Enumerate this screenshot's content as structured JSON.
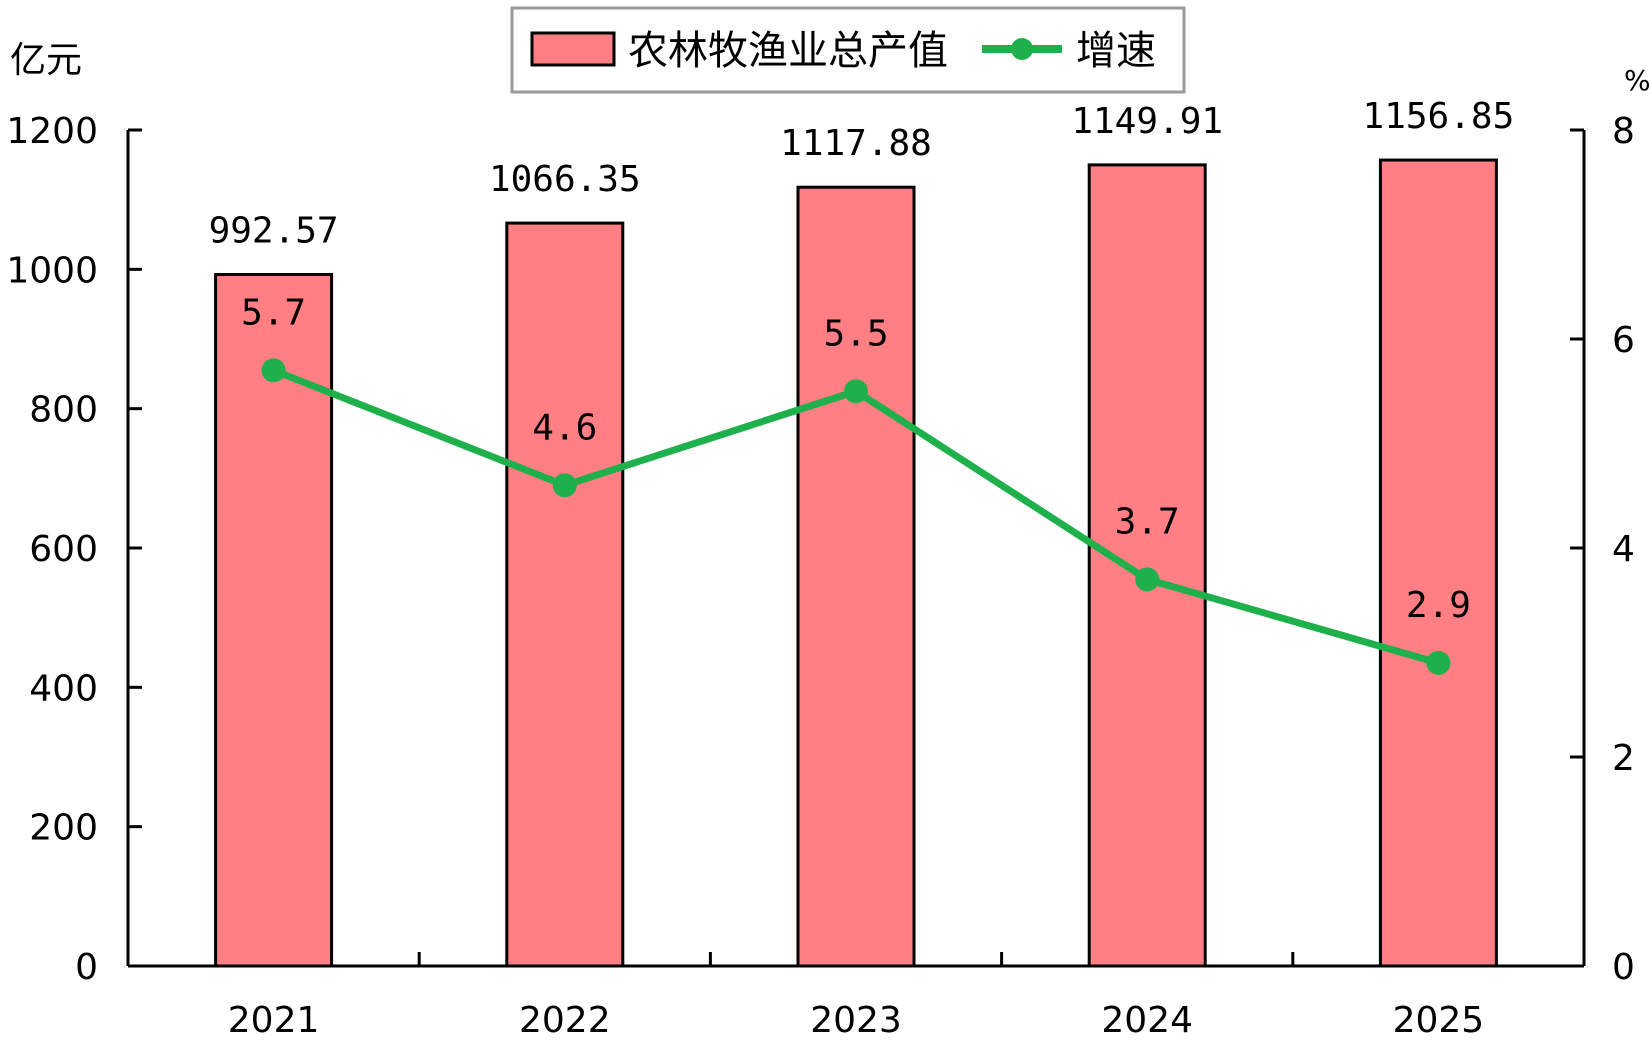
{
  "colors": {
    "bar_fill": "#ff7f84",
    "bar_stroke": "#000000",
    "line": "#1db04b",
    "axis": "#000000"
  },
  "chart_data": {
    "type": "bar",
    "categories": [
      "2021",
      "2022",
      "2023",
      "2024",
      "2025"
    ],
    "series": [
      {
        "name": "农林牧渔业总产值",
        "type": "bar",
        "axis": "left",
        "values": [
          992.57,
          1066.35,
          1117.88,
          1149.91,
          1156.85
        ],
        "labels": [
          "992.57",
          "1066.35",
          "1117.88",
          "1149.91",
          "1156.85"
        ]
      },
      {
        "name": "增速",
        "type": "line",
        "axis": "right",
        "values": [
          5.7,
          4.6,
          5.5,
          3.7,
          2.9
        ],
        "labels": [
          "5.7",
          "4.6",
          "5.5",
          "3.7",
          "2.9"
        ]
      }
    ],
    "left_axis": {
      "unit": "亿元",
      "range": [
        0,
        1200
      ],
      "ticks": [
        0,
        200,
        400,
        600,
        800,
        1000,
        1200
      ]
    },
    "right_axis": {
      "unit": "%",
      "range": [
        0,
        8
      ],
      "ticks": [
        0,
        2,
        4,
        6,
        8
      ]
    },
    "grid": false,
    "legend": "top-center"
  }
}
